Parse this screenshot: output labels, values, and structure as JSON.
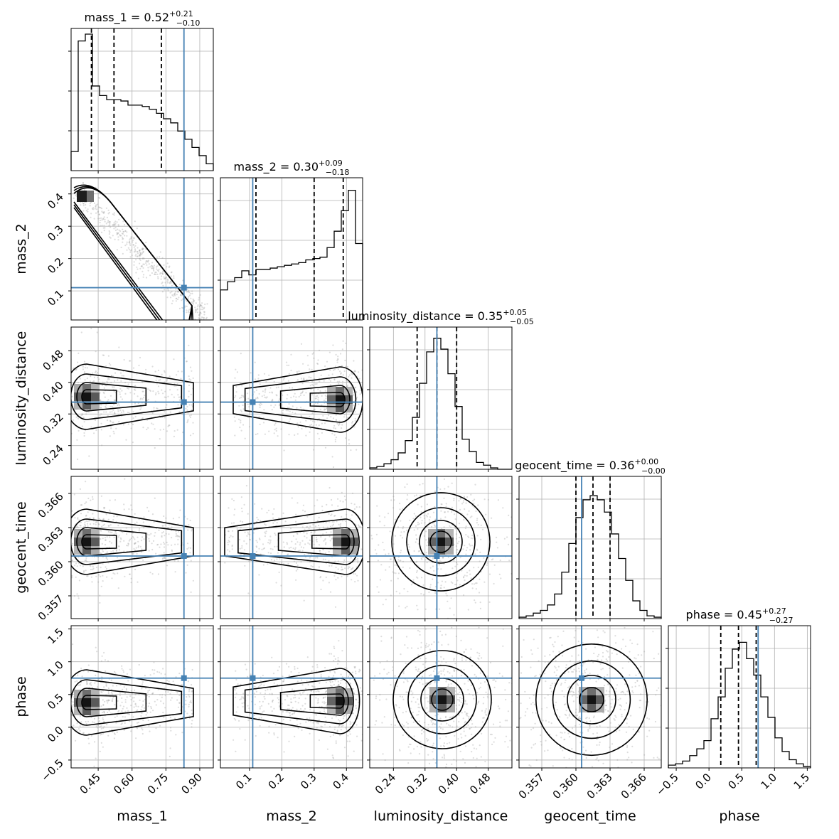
{
  "chart_data": {
    "type": "corner",
    "parameters": [
      {
        "name": "mass_1",
        "xlabel": "mass_1",
        "ylabel": "",
        "title_main": "mass_1 = 0.52",
        "title_sup": "+0.21",
        "title_sub": "−0.10",
        "range": [
          0.33,
          0.96
        ],
        "ticks": [
          0.45,
          0.6,
          0.75,
          0.9
        ],
        "tick_labels": [
          "0.45",
          "0.60",
          "0.75",
          "0.90"
        ],
        "quantiles": [
          0.42,
          0.52,
          0.73
        ],
        "truth": 0.83
      },
      {
        "name": "mass_2",
        "xlabel": "mass_2",
        "ylabel": "mass_2",
        "title_main": "mass_2 = 0.30",
        "title_sup": "+0.09",
        "title_sub": "−0.18",
        "range": [
          0.01,
          0.45
        ],
        "ticks": [
          0.1,
          0.2,
          0.3,
          0.4
        ],
        "tick_labels": [
          "0.1",
          "0.2",
          "0.3",
          "0.4"
        ],
        "quantiles": [
          0.12,
          0.3,
          0.39
        ],
        "truth": 0.11
      },
      {
        "name": "luminosity_distance",
        "xlabel": "luminosity_distance",
        "ylabel": "luminosity_distance",
        "title_main": "luminosity_distance = 0.35",
        "title_sup": "+0.05",
        "title_sub": "−0.05",
        "range": [
          0.18,
          0.54
        ],
        "ticks": [
          0.24,
          0.32,
          0.4,
          0.48
        ],
        "tick_labels": [
          "0.24",
          "0.32",
          "0.40",
          "0.48"
        ],
        "quantiles": [
          0.3,
          0.35,
          0.4
        ],
        "truth": 0.35
      },
      {
        "name": "geocent_time",
        "xlabel": "geocent_time",
        "ylabel": "geocent_time",
        "title_main": "geocent_time = 0.36",
        "title_sup": "+0.00",
        "title_sub": "−0.00",
        "range": [
          0.355,
          0.3675
        ],
        "ticks": [
          0.357,
          0.36,
          0.363,
          0.366
        ],
        "tick_labels": [
          "0.357",
          "0.360",
          "0.363",
          "0.366"
        ],
        "quantiles": [
          0.36,
          0.3615,
          0.363
        ],
        "truth": 0.3605
      },
      {
        "name": "phase",
        "xlabel": "phase",
        "ylabel": "phase",
        "title_main": "phase = 0.45",
        "title_sup": "+0.27",
        "title_sub": "−0.27",
        "range": [
          -0.62,
          1.55
        ],
        "ticks": [
          -0.5,
          0.0,
          0.5,
          1.0,
          1.5
        ],
        "tick_labels": [
          "−0.5",
          "0.0",
          "0.5",
          "1.0",
          "1.5"
        ],
        "quantiles": [
          0.18,
          0.45,
          0.72
        ],
        "truth": 0.75
      }
    ],
    "histograms": [
      {
        "counts": [
          0.14,
          0.95,
          1.0,
          0.62,
          0.55,
          0.52,
          0.52,
          0.51,
          0.48,
          0.48,
          0.47,
          0.45,
          0.42,
          0.38,
          0.35,
          0.29,
          0.23,
          0.17,
          0.11,
          0.05
        ]
      },
      {
        "counts": [
          0.22,
          0.28,
          0.31,
          0.36,
          0.33,
          0.37,
          0.37,
          0.38,
          0.39,
          0.4,
          0.41,
          0.42,
          0.44,
          0.45,
          0.46,
          0.53,
          0.65,
          0.8,
          0.95,
          0.56
        ]
      },
      {
        "counts": [
          0.01,
          0.02,
          0.04,
          0.07,
          0.12,
          0.21,
          0.38,
          0.63,
          0.86,
          0.96,
          0.88,
          0.7,
          0.46,
          0.22,
          0.13,
          0.05,
          0.03,
          0.01,
          0.0,
          0.0
        ]
      },
      {
        "counts": [
          0.01,
          0.02,
          0.04,
          0.06,
          0.1,
          0.18,
          0.34,
          0.55,
          0.74,
          0.87,
          0.9,
          0.87,
          0.78,
          0.62,
          0.44,
          0.28,
          0.13,
          0.06,
          0.02,
          0.01
        ]
      },
      {
        "counts": [
          0.02,
          0.03,
          0.05,
          0.09,
          0.14,
          0.2,
          0.36,
          0.52,
          0.73,
          0.87,
          0.92,
          0.8,
          0.68,
          0.52,
          0.37,
          0.22,
          0.12,
          0.06,
          0.03,
          0.01
        ]
      }
    ],
    "contour_levels": [
      "0.5 sigma",
      "1 sigma",
      "1.5 sigma",
      "2 sigma"
    ],
    "grid": true,
    "colors": {
      "truth": "#4682b4",
      "hist": "#000000",
      "contours": "#000000",
      "points": "#9e9e9e"
    }
  }
}
